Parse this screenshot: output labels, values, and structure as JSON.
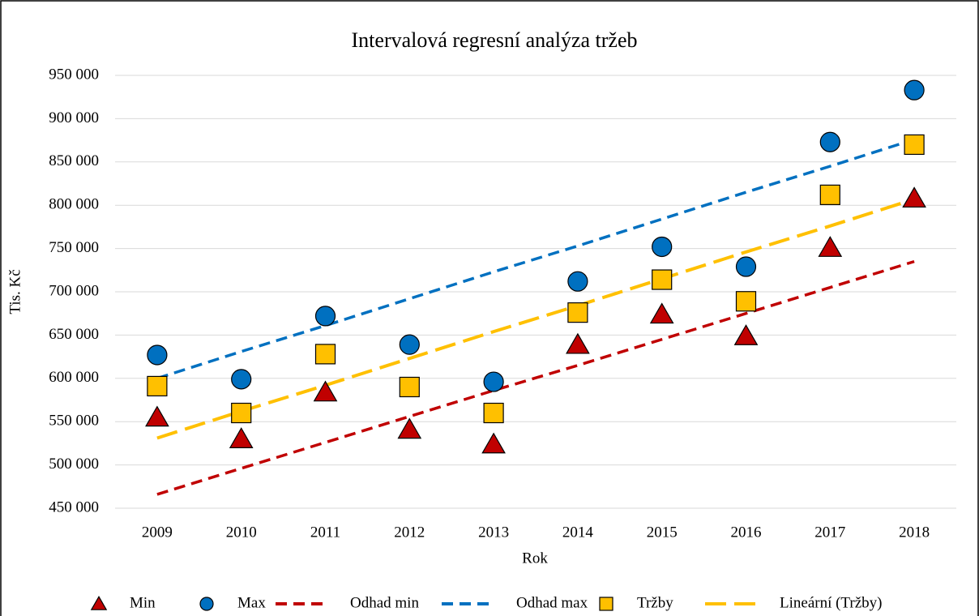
{
  "chart_data": {
    "type": "line",
    "title": "Intervalová regresní analýza tržeb",
    "x_label": "Rok",
    "y_label": "Tis. Kč",
    "categories": [
      "2009",
      "2010",
      "2011",
      "2012",
      "2013",
      "2014",
      "2015",
      "2016",
      "2017",
      "2018"
    ],
    "ylim": [
      450000,
      950000
    ],
    "yticks": [
      {
        "value": 450000,
        "label": "450 000"
      },
      {
        "value": 500000,
        "label": "500 000"
      },
      {
        "value": 550000,
        "label": "550 000"
      },
      {
        "value": 600000,
        "label": "600 000"
      },
      {
        "value": 650000,
        "label": "650 000"
      },
      {
        "value": 700000,
        "label": "700 000"
      },
      {
        "value": 750000,
        "label": "750 000"
      },
      {
        "value": 800000,
        "label": "800 000"
      },
      {
        "value": 850000,
        "label": "850 000"
      },
      {
        "value": 900000,
        "label": "900 000"
      },
      {
        "value": 950000,
        "label": "950 000"
      }
    ],
    "grid": true,
    "legend": "bottom",
    "series": [
      {
        "name": "Min",
        "color": "#c00000",
        "marker": "triangle",
        "values": [
          555000,
          530000,
          584000,
          541000,
          524000,
          639000,
          674000,
          649000,
          751000,
          808000
        ]
      },
      {
        "name": "Max",
        "color": "#0070c0",
        "marker": "circle",
        "values": [
          627000,
          599000,
          672000,
          639000,
          596000,
          712000,
          752000,
          729000,
          873000,
          933000
        ]
      },
      {
        "name": "Odhad min",
        "color": "#c00000",
        "line": "dashed",
        "values": [
          466000,
          496000,
          526000,
          556000,
          586000,
          615000,
          645000,
          675000,
          705000,
          735000
        ]
      },
      {
        "name": "Odhad max",
        "color": "#0070c0",
        "line": "dashed",
        "values": [
          600000,
          631000,
          661000,
          692000,
          723000,
          753000,
          784000,
          815000,
          845000,
          876000
        ]
      },
      {
        "name": "Tržby",
        "color": "#ffc000",
        "marker": "square",
        "values": [
          591000,
          560000,
          628000,
          590000,
          560000,
          676000,
          714000,
          689000,
          812000,
          870000
        ]
      },
      {
        "name": "Lineární (Tržby)",
        "color": "#ffc000",
        "line": "longdash",
        "values": [
          531000,
          562000,
          592000,
          623000,
          654000,
          684000,
          715000,
          746000,
          776000,
          807000
        ]
      }
    ]
  }
}
